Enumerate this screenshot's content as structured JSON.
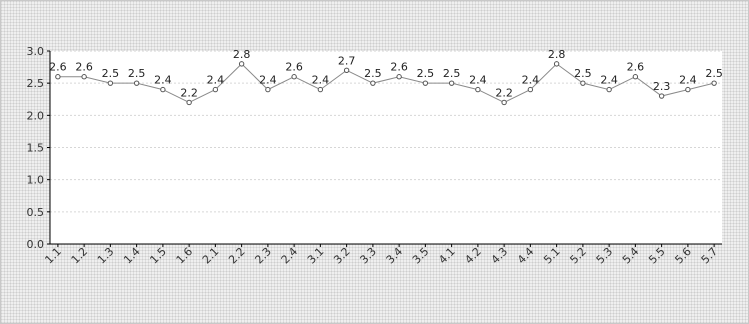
{
  "chart_data": {
    "type": "line",
    "categories": [
      "1.1",
      "1.2",
      "1.3",
      "1.4",
      "1.5",
      "1.6",
      "2.1",
      "2.2",
      "2.3",
      "2.4",
      "3.1",
      "3.2",
      "3.3",
      "3.4",
      "3.5",
      "4.1",
      "4.2",
      "4.3",
      "4.4",
      "5.1",
      "5.2",
      "5.3",
      "5.4",
      "5.5",
      "5.6",
      "5.7"
    ],
    "series": [
      {
        "values": [
          2.6,
          2.6,
          2.5,
          2.5,
          2.4,
          2.2,
          2.4,
          2.8,
          2.4,
          2.6,
          2.4,
          2.7,
          2.5,
          2.6,
          2.5,
          2.5,
          2.4,
          2.2,
          2.4,
          2.8,
          2.5,
          2.4,
          2.6,
          2.3,
          2.4,
          2.5
        ]
      }
    ],
    "y_ticks": [
      "0.0",
      "0.5",
      "1.0",
      "1.5",
      "2.0",
      "2.5",
      "3.0"
    ],
    "ylim": [
      0,
      3
    ],
    "title": "",
    "xlabel": "",
    "ylabel": "",
    "grid": true,
    "legend": "none",
    "colors": {
      "line": "#8a8a8a",
      "marker": "#555555",
      "plot_bg": "#ffffff",
      "grid": "#d6d6d6",
      "axis": "#000000"
    }
  }
}
